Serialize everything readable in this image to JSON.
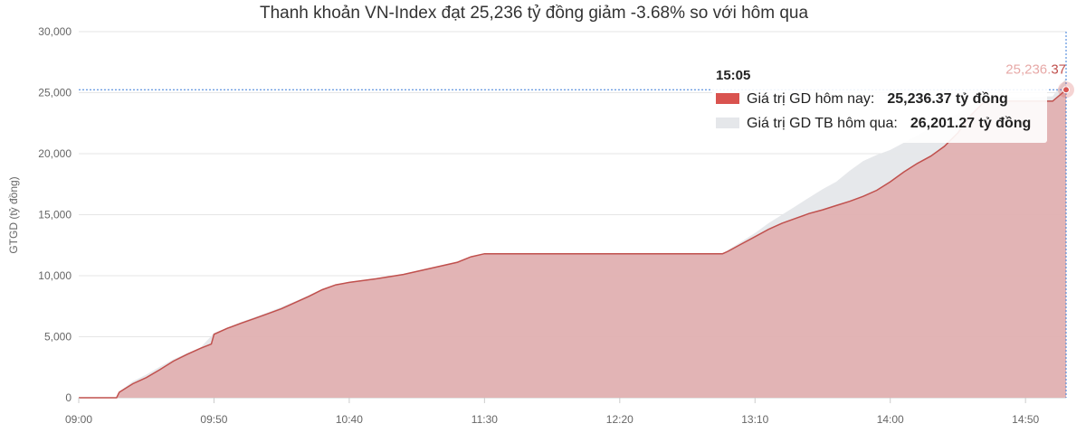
{
  "chart_data": {
    "type": "area",
    "title": "Thanh khoản VN-Index đạt 25,236 tỷ đồng giảm -3.68% so với hôm qua",
    "ylabel": "GTGD (tỷ đồng)",
    "xlabel": "",
    "ylim": [
      0,
      30000
    ],
    "y_ticks": [
      0,
      5000,
      10000,
      15000,
      20000,
      25000,
      30000
    ],
    "y_tick_labels": [
      "0",
      "5,000",
      "10,000",
      "15,000",
      "20,000",
      "25,000",
      "30,000"
    ],
    "x_range": [
      "09:00",
      "15:05"
    ],
    "x_ticks": [
      "09:00",
      "09:50",
      "10:40",
      "11:30",
      "12:20",
      "13:10",
      "14:00",
      "14:50"
    ],
    "grid": true,
    "series": [
      {
        "name": "Giá trị GD hôm nay",
        "color": "#d9534f",
        "points": [
          [
            "09:00",
            0
          ],
          [
            "09:14",
            0
          ],
          [
            "09:15",
            450
          ],
          [
            "09:20",
            1150
          ],
          [
            "09:25",
            1650
          ],
          [
            "09:30",
            2300
          ],
          [
            "09:35",
            3000
          ],
          [
            "09:40",
            3550
          ],
          [
            "09:45",
            4050
          ],
          [
            "09:49",
            4400
          ],
          [
            "09:50",
            5200
          ],
          [
            "09:55",
            5700
          ],
          [
            "10:00",
            6100
          ],
          [
            "10:05",
            6500
          ],
          [
            "10:10",
            6900
          ],
          [
            "10:15",
            7300
          ],
          [
            "10:20",
            7800
          ],
          [
            "10:25",
            8300
          ],
          [
            "10:30",
            8850
          ],
          [
            "10:35",
            9250
          ],
          [
            "10:40",
            9450
          ],
          [
            "10:50",
            9750
          ],
          [
            "11:00",
            10100
          ],
          [
            "11:10",
            10600
          ],
          [
            "11:20",
            11100
          ],
          [
            "11:25",
            11550
          ],
          [
            "11:30",
            11800
          ],
          [
            "12:58",
            11800
          ],
          [
            "13:00",
            12000
          ],
          [
            "13:05",
            12600
          ],
          [
            "13:10",
            13200
          ],
          [
            "13:15",
            13800
          ],
          [
            "13:20",
            14300
          ],
          [
            "13:25",
            14700
          ],
          [
            "13:30",
            15100
          ],
          [
            "13:35",
            15400
          ],
          [
            "13:40",
            15750
          ],
          [
            "13:45",
            16100
          ],
          [
            "13:50",
            16500
          ],
          [
            "13:55",
            17000
          ],
          [
            "14:00",
            17700
          ],
          [
            "14:05",
            18500
          ],
          [
            "14:10",
            19200
          ],
          [
            "14:15",
            19800
          ],
          [
            "14:20",
            20600
          ],
          [
            "14:25",
            21700
          ],
          [
            "14:30",
            23200
          ],
          [
            "14:35",
            24300
          ],
          [
            "14:40",
            24300
          ],
          [
            "14:50",
            24300
          ],
          [
            "15:00",
            24300
          ],
          [
            "15:05",
            25236.37
          ]
        ]
      },
      {
        "name": "Giá trị GD TB hôm qua",
        "color": "#e5e7ea",
        "points": [
          [
            "09:00",
            0
          ],
          [
            "09:14",
            0
          ],
          [
            "09:15",
            500
          ],
          [
            "09:20",
            1350
          ],
          [
            "09:25",
            1900
          ],
          [
            "09:30",
            2550
          ],
          [
            "09:35",
            3150
          ],
          [
            "09:40",
            3650
          ],
          [
            "09:45",
            4100
          ],
          [
            "09:50",
            5300
          ],
          [
            "10:00",
            6200
          ],
          [
            "10:10",
            7000
          ],
          [
            "10:20",
            7900
          ],
          [
            "10:30",
            8900
          ],
          [
            "10:40",
            9500
          ],
          [
            "10:50",
            9800
          ],
          [
            "11:00",
            10150
          ],
          [
            "11:10",
            10650
          ],
          [
            "11:20",
            11150
          ],
          [
            "11:30",
            11800
          ],
          [
            "12:58",
            11800
          ],
          [
            "13:00",
            12100
          ],
          [
            "13:05",
            12800
          ],
          [
            "13:10",
            13500
          ],
          [
            "13:15",
            14300
          ],
          [
            "13:20",
            15000
          ],
          [
            "13:25",
            15700
          ],
          [
            "13:30",
            16400
          ],
          [
            "13:35",
            17100
          ],
          [
            "13:40",
            17700
          ],
          [
            "13:45",
            18600
          ],
          [
            "13:50",
            19400
          ],
          [
            "13:55",
            19900
          ],
          [
            "14:00",
            20300
          ],
          [
            "14:05",
            20900
          ],
          [
            "14:10",
            21500
          ],
          [
            "14:15",
            22100
          ],
          [
            "14:20",
            22700
          ],
          [
            "14:25",
            23300
          ],
          [
            "14:30",
            24000
          ],
          [
            "14:35",
            24500
          ],
          [
            "14:40",
            24600
          ],
          [
            "14:50",
            24650
          ],
          [
            "15:00",
            24700
          ],
          [
            "15:05",
            26201.27
          ]
        ]
      }
    ],
    "tooltip": {
      "time": "15:05",
      "rows": [
        {
          "label": "Giá trị GD hôm nay:",
          "value": "25,236.37 tỷ đồng",
          "color": "#d9534f"
        },
        {
          "label": "Giá trị GD TB hôm qua:",
          "value": "26,201.27 tỷ đồng",
          "color": "#e5e7ea"
        }
      ]
    },
    "end_label": {
      "main": "25,236.",
      "tail": "37"
    }
  }
}
